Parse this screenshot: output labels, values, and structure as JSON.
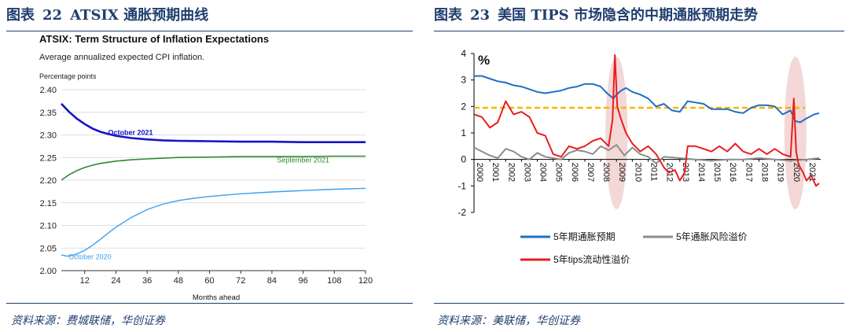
{
  "left_panel": {
    "figure_label": "图表",
    "figure_number": "22",
    "figure_title": "ATSIX 通胀预期曲线",
    "source": "资料来源：费城联储，华创证券"
  },
  "right_panel": {
    "figure_label": "图表",
    "figure_number": "23",
    "figure_title": "美国 TIPS 市场隐含的中期通胀预期走势",
    "source": "资料来源：美联储，华创证券"
  },
  "chart_data": [
    {
      "type": "line",
      "title": "ATSIX: Term Structure of Inflation Expectations",
      "subtitle": "Average annualized expected CPI inflation.",
      "ylabel": "Percentage points",
      "xlabel": "Months ahead",
      "xlim": [
        3,
        120
      ],
      "ylim": [
        2.0,
        2.4
      ],
      "xticks": [
        12,
        24,
        36,
        48,
        60,
        72,
        84,
        96,
        108,
        120
      ],
      "yticks": [
        "2.00",
        "2.05",
        "2.10",
        "2.15",
        "2.20",
        "2.25",
        "2.30",
        "2.35",
        "2.40"
      ],
      "grid": "horizontal",
      "series": [
        {
          "name": "October 2021",
          "color": "#1414c8",
          "x": [
            3,
            6,
            9,
            12,
            15,
            18,
            21,
            24,
            30,
            36,
            42,
            48,
            60,
            72,
            84,
            96,
            108,
            120
          ],
          "values": [
            2.369,
            2.351,
            2.336,
            2.324,
            2.314,
            2.307,
            2.302,
            2.298,
            2.293,
            2.29,
            2.288,
            2.287,
            2.286,
            2.285,
            2.285,
            2.284,
            2.284,
            2.284
          ]
        },
        {
          "name": "September 2021",
          "color": "#2f8a2f",
          "x": [
            3,
            6,
            9,
            12,
            15,
            18,
            24,
            30,
            36,
            48,
            60,
            72,
            84,
            96,
            108,
            120
          ],
          "values": [
            2.2,
            2.212,
            2.221,
            2.228,
            2.233,
            2.237,
            2.242,
            2.245,
            2.247,
            2.25,
            2.251,
            2.252,
            2.252,
            2.252,
            2.253,
            2.253
          ]
        },
        {
          "name": "October 2020",
          "color": "#3aa0f0",
          "x": [
            3,
            5,
            7,
            9,
            12,
            15,
            18,
            21,
            24,
            30,
            36,
            42,
            48,
            54,
            60,
            72,
            84,
            96,
            108,
            120
          ],
          "values": [
            2.035,
            2.032,
            2.033,
            2.037,
            2.045,
            2.056,
            2.069,
            2.083,
            2.096,
            2.118,
            2.135,
            2.147,
            2.155,
            2.16,
            2.164,
            2.17,
            2.174,
            2.177,
            2.18,
            2.182
          ]
        }
      ]
    },
    {
      "type": "line",
      "title": "美国 TIPS 市场隐含的中期通胀预期走势",
      "ylabel": "%",
      "ylim": [
        -2,
        4
      ],
      "xlim": [
        2000,
        2021.9
      ],
      "yticks": [
        -2,
        -1,
        0,
        1,
        2,
        3,
        4
      ],
      "xticks": [
        "2000",
        "2001",
        "2002",
        "2003",
        "2004",
        "2005",
        "2006",
        "2007",
        "2008",
        "2009",
        "2010",
        "2011",
        "2012",
        "2013",
        "2014",
        "2015",
        "2016",
        "2017",
        "2018",
        "2019",
        "2020",
        "2021"
      ],
      "reference_line": {
        "y": 1.95,
        "color": "#f5b800",
        "style": "dashed"
      },
      "highlight_regions": [
        {
          "x": 2009.0
        },
        {
          "x": 2020.3
        }
      ],
      "legend": [
        "5年期通胀预期",
        "5年通胀风险溢价",
        "5年tips流动性溢价"
      ],
      "series": [
        {
          "name": "5年期通胀预期",
          "color": "#1f6fc4",
          "x": [
            2000,
            2000.5,
            2001,
            2001.5,
            2002,
            2002.5,
            2003,
            2003.5,
            2004,
            2004.5,
            2005,
            2005.5,
            2006,
            2006.5,
            2007,
            2007.5,
            2008,
            2008.4,
            2008.8,
            2009,
            2009.3,
            2009.6,
            2010,
            2010.5,
            2011,
            2011.5,
            2012,
            2012.5,
            2013,
            2013.5,
            2014,
            2014.5,
            2015,
            2015.5,
            2016,
            2016.5,
            2017,
            2017.5,
            2018,
            2018.5,
            2019,
            2019.5,
            2020,
            2020.3,
            2020.6,
            2021,
            2021.5,
            2021.8
          ],
          "values": [
            3.15,
            3.15,
            3.05,
            2.95,
            2.9,
            2.8,
            2.75,
            2.65,
            2.55,
            2.5,
            2.55,
            2.6,
            2.7,
            2.75,
            2.85,
            2.85,
            2.75,
            2.5,
            2.3,
            2.45,
            2.6,
            2.7,
            2.55,
            2.45,
            2.3,
            2.0,
            2.1,
            1.85,
            1.8,
            2.2,
            2.15,
            2.1,
            1.9,
            1.9,
            1.9,
            1.8,
            1.75,
            1.95,
            2.05,
            2.05,
            2.0,
            1.7,
            1.85,
            1.45,
            1.4,
            1.55,
            1.7,
            1.75
          ]
        },
        {
          "name": "5年通胀风险溢价",
          "color": "#8c8c8c",
          "x": [
            2000,
            2000.5,
            2001,
            2001.5,
            2002,
            2002.5,
            2003,
            2003.5,
            2004,
            2004.5,
            2005,
            2005.5,
            2006,
            2006.5,
            2007,
            2007.5,
            2008,
            2008.5,
            2009,
            2009.5,
            2010,
            2010.5,
            2011,
            2011.5,
            2012,
            2013,
            2014,
            2015,
            2016,
            2017,
            2018,
            2019,
            2020,
            2021,
            2021.8
          ],
          "values": [
            0.45,
            0.3,
            0.15,
            0.05,
            0.4,
            0.3,
            0.1,
            0.0,
            0.25,
            0.1,
            0.05,
            0.0,
            0.25,
            0.35,
            0.3,
            0.2,
            0.5,
            0.35,
            0.55,
            0.15,
            0.45,
            0.2,
            0.1,
            -0.15,
            0.1,
            0.05,
            0.0,
            -0.05,
            0.0,
            0.0,
            0.05,
            0.0,
            -0.05,
            0.0,
            0.05
          ]
        },
        {
          "name": "5年tips流动性溢价",
          "color": "#e81e1e",
          "x": [
            2000,
            2000.5,
            2001,
            2001.5,
            2002,
            2002.5,
            2003,
            2003.5,
            2004,
            2004.5,
            2005,
            2005.5,
            2006,
            2006.5,
            2007,
            2007.5,
            2008,
            2008.5,
            2008.75,
            2008.9,
            2009.05,
            2009.3,
            2009.6,
            2010,
            2010.5,
            2011,
            2011.5,
            2012,
            2012.3,
            2012.7,
            2013,
            2013.3,
            2013.5,
            2014,
            2014.5,
            2015,
            2015.5,
            2016,
            2016.5,
            2017,
            2017.5,
            2018,
            2018.5,
            2019,
            2019.5,
            2020,
            2020.2,
            2020.35,
            2020.5,
            2020.8,
            2021,
            2021.3,
            2021.6,
            2021.8
          ],
          "values": [
            1.7,
            1.6,
            1.2,
            1.4,
            2.2,
            1.7,
            1.8,
            1.6,
            1.0,
            0.9,
            0.2,
            0.1,
            0.5,
            0.4,
            0.5,
            0.7,
            0.8,
            0.5,
            1.5,
            3.95,
            2.0,
            1.5,
            1.0,
            0.6,
            0.3,
            0.5,
            0.2,
            -0.3,
            -0.5,
            -0.4,
            -0.8,
            -0.5,
            0.5,
            0.5,
            0.4,
            0.3,
            0.5,
            0.3,
            0.6,
            0.3,
            0.2,
            0.4,
            0.2,
            0.4,
            0.2,
            0.1,
            2.3,
            0.3,
            -0.2,
            -0.5,
            -0.8,
            -0.6,
            -1.0,
            -0.9
          ]
        }
      ]
    }
  ]
}
